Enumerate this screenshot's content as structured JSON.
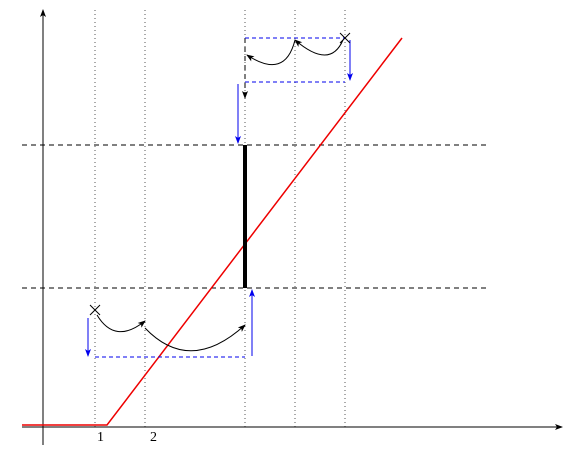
{
  "axis_labels": [
    "1",
    "2"
  ]
}
